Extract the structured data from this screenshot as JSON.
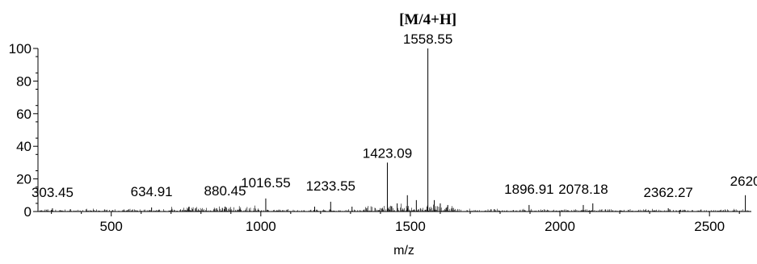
{
  "chart_data": {
    "type": "line",
    "title": "",
    "xlabel": "m/z",
    "ylabel": "",
    "xlim": [
      255,
      2640
    ],
    "ylim": [
      0,
      100
    ],
    "x_ticks": [
      500,
      1000,
      1500,
      2000,
      2500
    ],
    "y_ticks": [
      0,
      20,
      40,
      60,
      80,
      100
    ],
    "grid": false,
    "legend": "none",
    "annotation": {
      "text": "[M/4+H]",
      "x": 1558.55
    },
    "peaks": [
      {
        "x": 303.45,
        "y": 2,
        "label": "303.45"
      },
      {
        "x": 634.91,
        "y": 2.5,
        "label": "634.91"
      },
      {
        "x": 880.45,
        "y": 3,
        "label": "880.45"
      },
      {
        "x": 1016.55,
        "y": 8,
        "label": "1016.55"
      },
      {
        "x": 1233.55,
        "y": 6,
        "label": "1233.55"
      },
      {
        "x": 1423.09,
        "y": 30,
        "label": "1423.09"
      },
      {
        "x": 1558.55,
        "y": 100,
        "label": "1558.55"
      },
      {
        "x": 1896.91,
        "y": 4,
        "label": "1896.91"
      },
      {
        "x": 2078.18,
        "y": 4,
        "label": "2078.18"
      },
      {
        "x": 2362.27,
        "y": 2,
        "label": "2362.27"
      },
      {
        "x": 2620,
        "y": 10,
        "label": "2620"
      },
      {
        "x": 1456,
        "y": 5,
        "label": ""
      },
      {
        "x": 1490,
        "y": 10,
        "label": ""
      },
      {
        "x": 1520,
        "y": 7,
        "label": ""
      },
      {
        "x": 1580,
        "y": 7,
        "label": ""
      },
      {
        "x": 1600,
        "y": 5,
        "label": ""
      },
      {
        "x": 1625,
        "y": 4,
        "label": ""
      },
      {
        "x": 2110,
        "y": 5,
        "label": ""
      },
      {
        "x": 1305,
        "y": 3,
        "label": ""
      },
      {
        "x": 1180,
        "y": 3,
        "label": ""
      },
      {
        "x": 760,
        "y": 3,
        "label": ""
      }
    ],
    "colors": {
      "trace": "#000000",
      "axis": "#000000"
    }
  }
}
